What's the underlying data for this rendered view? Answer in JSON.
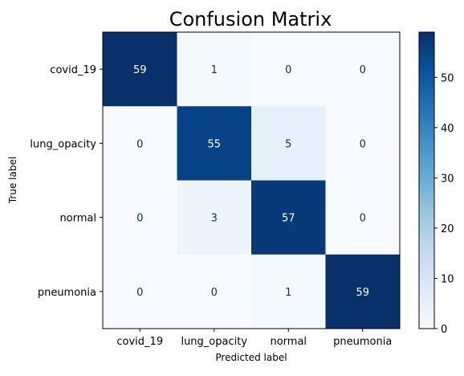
{
  "chart_data": {
    "type": "heatmap",
    "title": "Confusion Matrix",
    "xlabel": "Predicted label",
    "ylabel": "True label",
    "x_categories": [
      "covid_19",
      "lung_opacity",
      "normal",
      "pneumonia"
    ],
    "y_categories": [
      "covid_19",
      "lung_opacity",
      "normal",
      "pneumonia"
    ],
    "values": [
      [
        59,
        1,
        0,
        0
      ],
      [
        0,
        55,
        5,
        0
      ],
      [
        0,
        3,
        57,
        0
      ],
      [
        0,
        0,
        1,
        59
      ]
    ],
    "colormap": "Blues",
    "vmin": 0,
    "vmax": 59,
    "colorbar_ticks": [
      0,
      10,
      20,
      30,
      40,
      50
    ],
    "grid": false
  }
}
